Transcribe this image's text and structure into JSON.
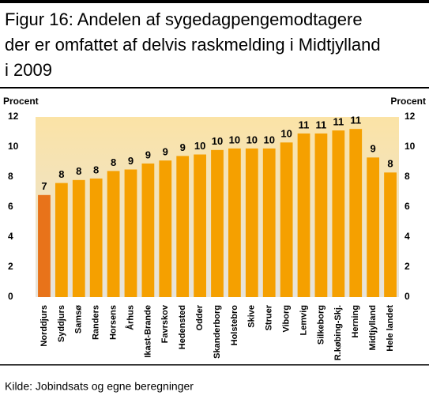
{
  "chart_data": {
    "type": "bar",
    "title": [
      "Figur 16: Andelen af sygedagpengemodtagere",
      "der er omfattet af delvis raskmelding i Midtjylland",
      "i 2009"
    ],
    "y_label": "Procent",
    "y2_label": "Procent",
    "categories": [
      "Norddjurs",
      "Syddjurs",
      "Samsø",
      "Randers",
      "Horsens",
      "Århus",
      "Ikast-Brande",
      "Favrskov",
      "Hedensted",
      "Odder",
      "Skanderborg",
      "Holstebro",
      "Skive",
      "Struer",
      "Viborg",
      "Lemvig",
      "Silkeborg",
      "R.købing-Skj.",
      "Herning",
      "Midtjylland",
      "Hele landet"
    ],
    "values": [
      6.8,
      7.6,
      7.8,
      7.9,
      8.4,
      8.5,
      8.9,
      9.1,
      9.4,
      9.5,
      9.8,
      9.9,
      9.9,
      9.9,
      10.3,
      10.9,
      10.9,
      11.1,
      11.2,
      9.3,
      8.3
    ],
    "value_labels": [
      "7",
      "8",
      "8",
      "8",
      "8",
      "9",
      "9",
      "9",
      "9",
      "10",
      "10",
      "10",
      "10",
      "10",
      "10",
      "11",
      "11",
      "11",
      "11",
      "9",
      "8"
    ],
    "colors": [
      "#e8731a",
      "#f5a000",
      "#f5a000",
      "#f5a000",
      "#f5a000",
      "#f5a000",
      "#f5a000",
      "#f5a000",
      "#f5a000",
      "#f5a000",
      "#f5a000",
      "#f5a000",
      "#f5a000",
      "#f5a000",
      "#f5a000",
      "#f5a000",
      "#f5a000",
      "#f5a000",
      "#f5a000",
      "#f5a000",
      "#f5a000"
    ],
    "ylim": [
      0,
      12
    ],
    "yticks": [
      0,
      2,
      4,
      6,
      8,
      10,
      12
    ],
    "y2lim": [
      0,
      12
    ],
    "y2ticks": [
      0,
      2,
      4,
      6,
      8,
      10,
      12
    ],
    "source": "Kilde: Jobindsats og egne beregninger"
  }
}
